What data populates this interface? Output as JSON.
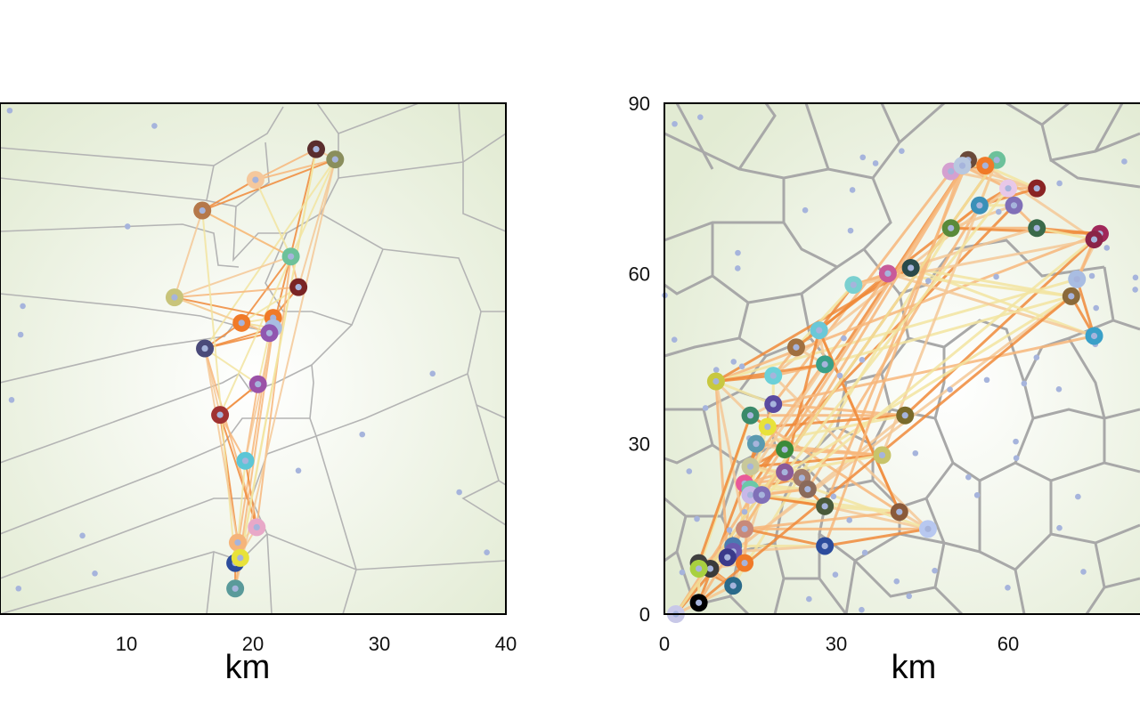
{
  "chart_data": [
    {
      "type": "scatter",
      "title": "",
      "xlabel": "km",
      "ylabel": "",
      "xlim": [
        -10,
        40
      ],
      "xticks": [
        10,
        20,
        30,
        40
      ],
      "background_gradient": [
        "#ffffff",
        "#e2ebd3"
      ],
      "small_dot_color": "#a6b4dc",
      "series": [
        {
          "color": "#5a2d2d",
          "x": 25.0,
          "y": 91
        },
        {
          "color": "#8a8e5c",
          "x": 26.5,
          "y": 89
        },
        {
          "color": "#f5c89c",
          "x": 20.2,
          "y": 85
        },
        {
          "color": "#b5784a",
          "x": 16.0,
          "y": 79
        },
        {
          "color": "#6cc19a",
          "x": 23.0,
          "y": 70
        },
        {
          "color": "#c8c47a",
          "x": 13.8,
          "y": 62
        },
        {
          "color": "#7a2424",
          "x": 23.6,
          "y": 64
        },
        {
          "color": "#f07a28",
          "x": 21.6,
          "y": 58
        },
        {
          "color": "#f07a28",
          "x": 19.1,
          "y": 57
        },
        {
          "color": "#a9bde2",
          "x": 21.6,
          "y": 56
        },
        {
          "color": "#9056b0",
          "x": 21.3,
          "y": 55
        },
        {
          "color": "#4a4a7a",
          "x": 16.2,
          "y": 52
        },
        {
          "color": "#9b52a8",
          "x": 20.4,
          "y": 45
        },
        {
          "color": "#a03232",
          "x": 17.4,
          "y": 39
        },
        {
          "color": "#5cc6d6",
          "x": 19.4,
          "y": 30
        },
        {
          "color": "#e8a8c8",
          "x": 20.3,
          "y": 17
        },
        {
          "color": "#f5b47a",
          "x": 18.8,
          "y": 14
        },
        {
          "color": "#2c4c9c",
          "x": 18.6,
          "y": 10
        },
        {
          "color": "#e8e23a",
          "x": 19.0,
          "y": 11
        },
        {
          "color": "#5a9a9a",
          "x": 18.6,
          "y": 5
        }
      ]
    },
    {
      "type": "scatter",
      "title": "",
      "xlabel": "km",
      "ylabel": "",
      "xlim": [
        0,
        83
      ],
      "ylim": [
        0,
        90
      ],
      "xticks": [
        0,
        30,
        60
      ],
      "yticks": [
        0,
        30,
        60,
        90
      ],
      "background_gradient": [
        "#ffffff",
        "#e2ebd3"
      ],
      "small_dot_color": "#a6b4dc",
      "series": [
        {
          "color": "#6a4a3a",
          "x": 53,
          "y": 80
        },
        {
          "color": "#6cc19a",
          "x": 58,
          "y": 80
        },
        {
          "color": "#f07a28",
          "x": 56,
          "y": 79
        },
        {
          "color": "#d4a0d0",
          "x": 50,
          "y": 78
        },
        {
          "color": "#b8c8e0",
          "x": 52,
          "y": 79
        },
        {
          "color": "#8a2424",
          "x": 65,
          "y": 75
        },
        {
          "color": "#e8c8e8",
          "x": 60,
          "y": 75
        },
        {
          "color": "#3a90b8",
          "x": 55,
          "y": 72
        },
        {
          "color": "#8070b8",
          "x": 61,
          "y": 72
        },
        {
          "color": "#5a8a3a",
          "x": 50,
          "y": 68
        },
        {
          "color": "#3a6a4a",
          "x": 65,
          "y": 68
        },
        {
          "color": "#a0285a",
          "x": 76,
          "y": 67
        },
        {
          "color": "#8a2448",
          "x": 75,
          "y": 66
        },
        {
          "color": "#a9bde2",
          "x": 72,
          "y": 59
        },
        {
          "color": "#8a6a3a",
          "x": 71,
          "y": 56
        },
        {
          "color": "#3aa0c8",
          "x": 75,
          "y": 49
        },
        {
          "color": "#2a4a4a",
          "x": 43,
          "y": 61
        },
        {
          "color": "#c85a9a",
          "x": 39,
          "y": 60
        },
        {
          "color": "#7ad0d0",
          "x": 33,
          "y": 58
        },
        {
          "color": "#6ac8d8",
          "x": 27,
          "y": 50
        },
        {
          "color": "#a07040",
          "x": 23,
          "y": 47
        },
        {
          "color": "#3aa088",
          "x": 28,
          "y": 44
        },
        {
          "color": "#6ad0d8",
          "x": 19,
          "y": 42
        },
        {
          "color": "#c8c840",
          "x": 9,
          "y": 41
        },
        {
          "color": "#5a4aa0",
          "x": 19,
          "y": 37
        },
        {
          "color": "#3a8a6a",
          "x": 15,
          "y": 35
        },
        {
          "color": "#7a6a2a",
          "x": 42,
          "y": 35
        },
        {
          "color": "#e8e23a",
          "x": 18,
          "y": 33
        },
        {
          "color": "#5a9ab0",
          "x": 16,
          "y": 30
        },
        {
          "color": "#3a8a3a",
          "x": 21,
          "y": 29
        },
        {
          "color": "#c8c46a",
          "x": 38,
          "y": 28
        },
        {
          "color": "#c8c89a",
          "x": 15,
          "y": 26
        },
        {
          "color": "#8a5a9a",
          "x": 21,
          "y": 25
        },
        {
          "color": "#a07a6a",
          "x": 24,
          "y": 24
        },
        {
          "color": "#e85a9a",
          "x": 14,
          "y": 23
        },
        {
          "color": "#6ac8a8",
          "x": 15,
          "y": 22
        },
        {
          "color": "#8a6a5a",
          "x": 25,
          "y": 22
        },
        {
          "color": "#c8b8e8",
          "x": 15,
          "y": 21
        },
        {
          "color": "#8070b8",
          "x": 17,
          "y": 21
        },
        {
          "color": "#4a5a3a",
          "x": 28,
          "y": 19
        },
        {
          "color": "#8a5a3a",
          "x": 41,
          "y": 18
        },
        {
          "color": "#b8c8f0",
          "x": 46,
          "y": 15
        },
        {
          "color": "#c88a7a",
          "x": 14,
          "y": 15
        },
        {
          "color": "#2c4c9c",
          "x": 28,
          "y": 12
        },
        {
          "color": "#4a7ab0",
          "x": 12,
          "y": 12
        },
        {
          "color": "#6a5ab0",
          "x": 12,
          "y": 11
        },
        {
          "color": "#3a3a8a",
          "x": 11,
          "y": 10
        },
        {
          "color": "#f07a28",
          "x": 14,
          "y": 9
        },
        {
          "color": "#404040",
          "x": 6,
          "y": 9
        },
        {
          "color": "#3a3a3a",
          "x": 8,
          "y": 8
        },
        {
          "color": "#a8d040",
          "x": 6,
          "y": 8
        },
        {
          "color": "#2a6a8a",
          "x": 12,
          "y": 5
        },
        {
          "color": "#000000",
          "x": 6,
          "y": 2
        },
        {
          "color": "#c8c8e8",
          "x": 2,
          "y": 0
        }
      ]
    }
  ]
}
